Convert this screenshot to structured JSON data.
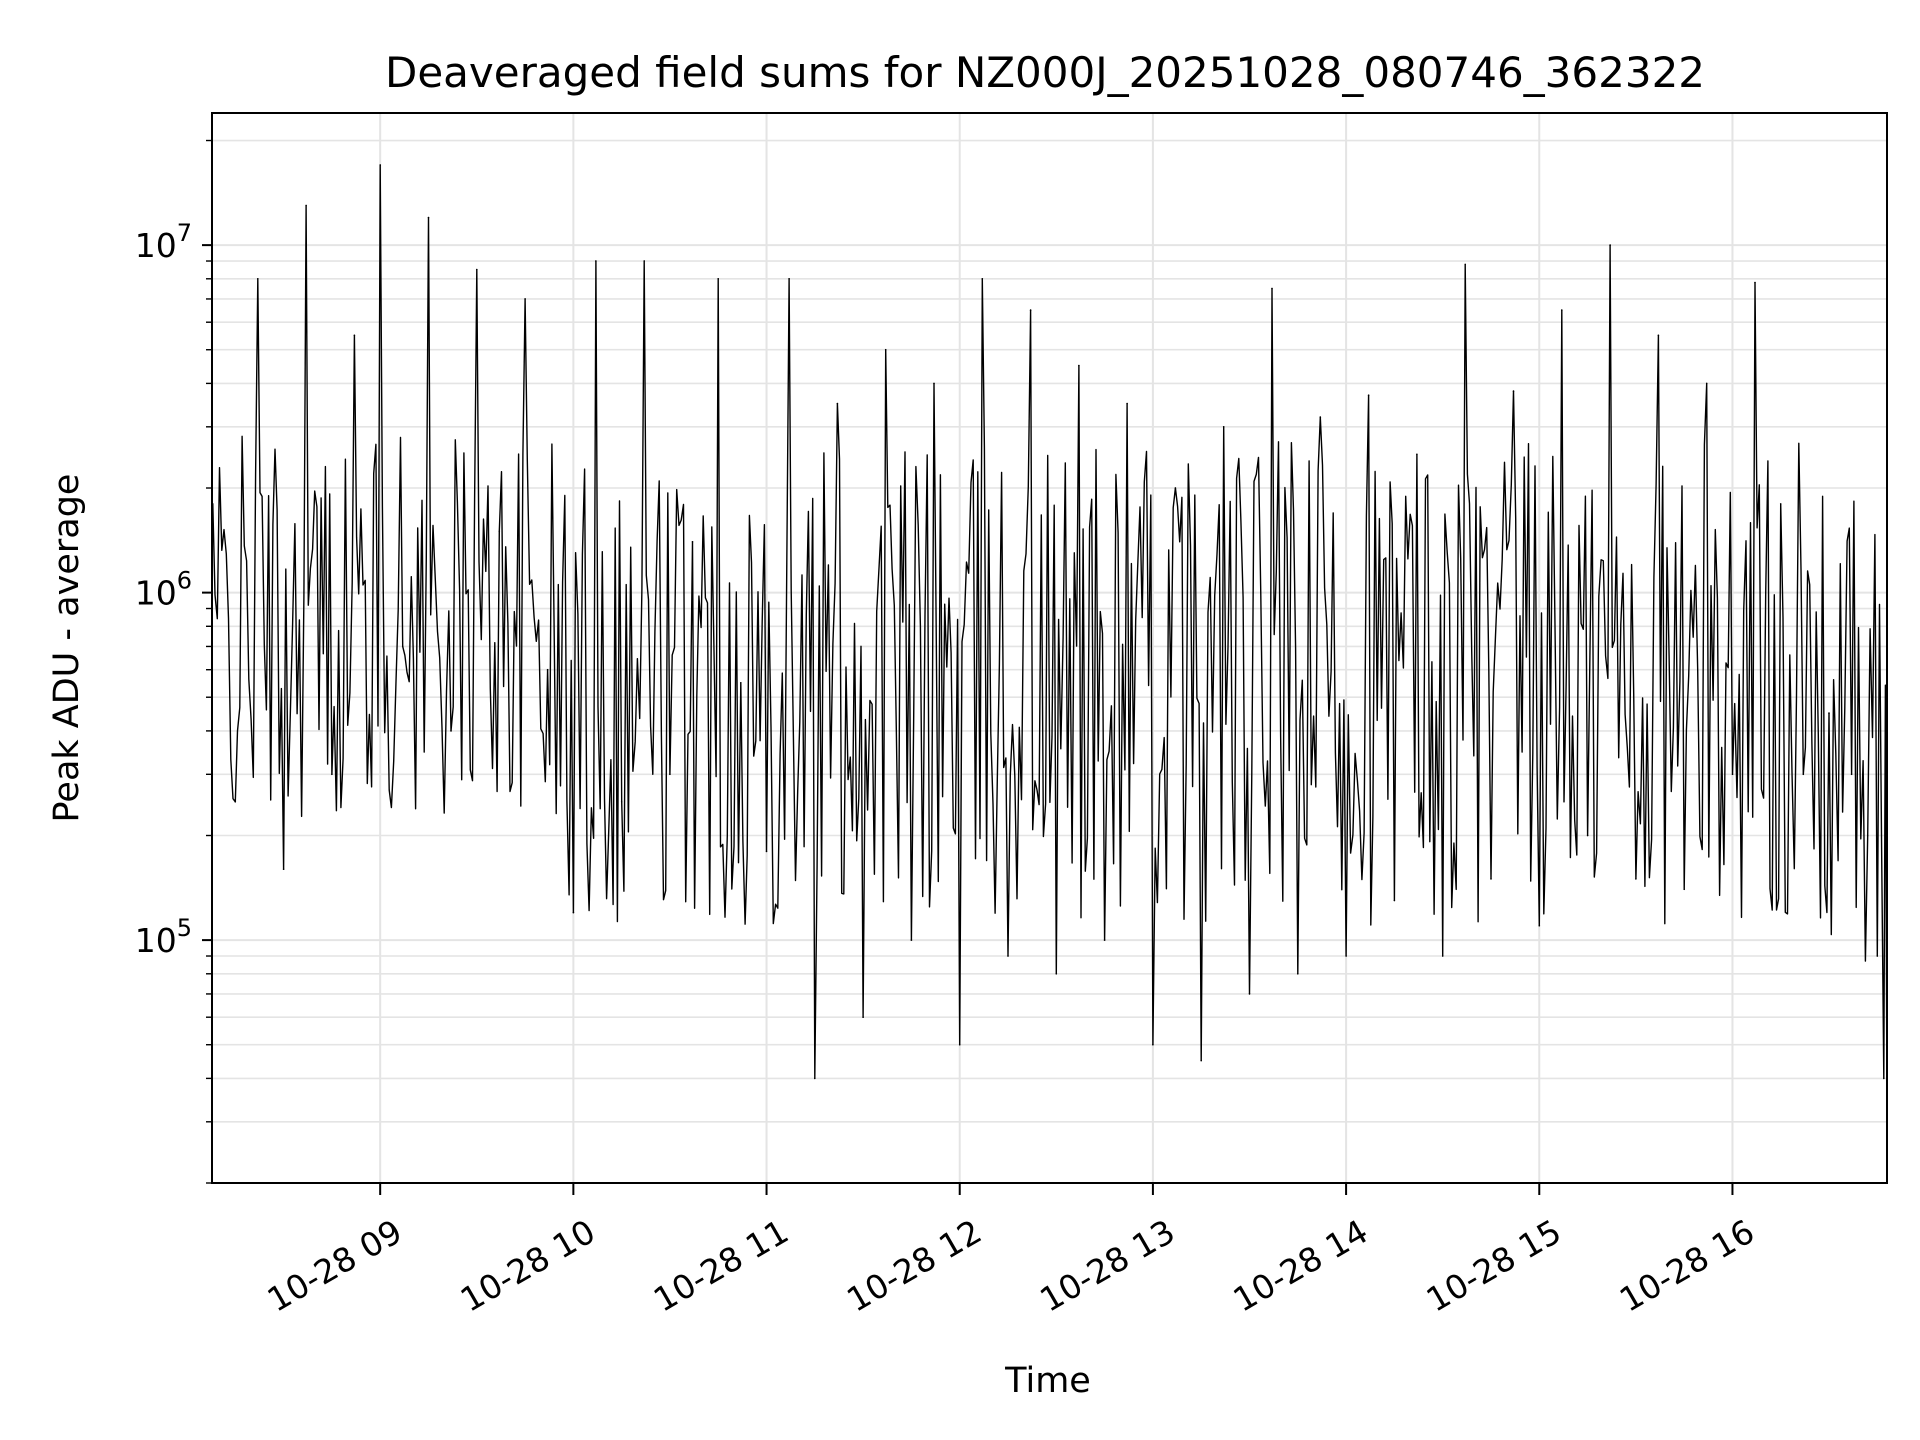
{
  "chart_data": {
    "type": "line",
    "title": "Deaveraged field sums for NZ000J_20251028_080746_362322",
    "xlabel": "Time",
    "ylabel": "Peak ADU - average",
    "yscale": "log",
    "xlim": [
      "2025-10-28 08:07:46",
      "2025-10-28 16:48:00"
    ],
    "ylim": [
      20000,
      24000000
    ],
    "grid": true,
    "legend": "none",
    "line_color": "#000000",
    "x_tick_labels": [
      "10-28 09",
      "10-28 10",
      "10-28 11",
      "10-28 12",
      "10-28 13",
      "10-28 14",
      "10-28 15",
      "10-28 16"
    ],
    "y_tick_labels": [
      {
        "base": "10",
        "exp": "5",
        "value": 100000
      },
      {
        "base": "10",
        "exp": "6",
        "value": 1000000
      },
      {
        "base": "10",
        "exp": "7",
        "value": 10000000
      }
    ],
    "series": [
      {
        "x": [
          "2025-10-28 08:08",
          "2025-10-28 08:15",
          "2025-10-28 08:22",
          "2025-10-28 08:30",
          "2025-10-28 08:37",
          "2025-10-28 08:45",
          "2025-10-28 08:52",
          "2025-10-28 09:00",
          "2025-10-28 09:07",
          "2025-10-28 09:15",
          "2025-10-28 09:22",
          "2025-10-28 09:30",
          "2025-10-28 09:37",
          "2025-10-28 09:45",
          "2025-10-28 09:52",
          "2025-10-28 10:00",
          "2025-10-28 10:07",
          "2025-10-28 10:15",
          "2025-10-28 10:22",
          "2025-10-28 10:30",
          "2025-10-28 10:37",
          "2025-10-28 10:45",
          "2025-10-28 10:52",
          "2025-10-28 11:00",
          "2025-10-28 11:07",
          "2025-10-28 11:15",
          "2025-10-28 11:22",
          "2025-10-28 11:30",
          "2025-10-28 11:37",
          "2025-10-28 11:45",
          "2025-10-28 11:52",
          "2025-10-28 12:00",
          "2025-10-28 12:07",
          "2025-10-28 12:15",
          "2025-10-28 12:22",
          "2025-10-28 12:30",
          "2025-10-28 12:37",
          "2025-10-28 12:45",
          "2025-10-28 12:52",
          "2025-10-28 13:00",
          "2025-10-28 13:07",
          "2025-10-28 13:15",
          "2025-10-28 13:22",
          "2025-10-28 13:30",
          "2025-10-28 13:37",
          "2025-10-28 13:45",
          "2025-10-28 13:52",
          "2025-10-28 14:00",
          "2025-10-28 14:07",
          "2025-10-28 14:15",
          "2025-10-28 14:22",
          "2025-10-28 14:30",
          "2025-10-28 14:37",
          "2025-10-28 14:45",
          "2025-10-28 14:52",
          "2025-10-28 15:00",
          "2025-10-28 15:07",
          "2025-10-28 15:15",
          "2025-10-28 15:22",
          "2025-10-28 15:30",
          "2025-10-28 15:37",
          "2025-10-28 15:45",
          "2025-10-28 15:52",
          "2025-10-28 16:00",
          "2025-10-28 16:07",
          "2025-10-28 16:15",
          "2025-10-28 16:22",
          "2025-10-28 16:30",
          "2025-10-28 16:37",
          "2025-10-28 16:42",
          "2025-10-28 16:45",
          "2025-10-28 16:47",
          "2025-10-28 16:48"
        ],
        "y": [
          1800000,
          250000,
          8000000,
          160000,
          13000000,
          300000,
          5500000,
          17000000,
          700000,
          12000000,
          400000,
          8500000,
          1500000,
          7000000,
          600000,
          120000,
          9000000,
          250000,
          9000000,
          300000,
          1400000,
          8000000,
          550000,
          180000,
          8000000,
          40000,
          3500000,
          60000,
          5000000,
          100000,
          4000000,
          50000,
          8000000,
          90000,
          6500000,
          80000,
          4500000,
          100000,
          3500000,
          50000,
          2000000,
          45000,
          3000000,
          70000,
          7500000,
          80000,
          3200000,
          90000,
          3700000,
          130000,
          2500000,
          90000,
          8800000,
          150000,
          3800000,
          110000,
          6500000,
          200000,
          10000000,
          150000,
          5500000,
          140000,
          4000000,
          300000,
          7800000,
          1800000,
          300000,
          450000,
          300000,
          200000,
          90000,
          40000,
          30000
        ]
      }
    ]
  }
}
